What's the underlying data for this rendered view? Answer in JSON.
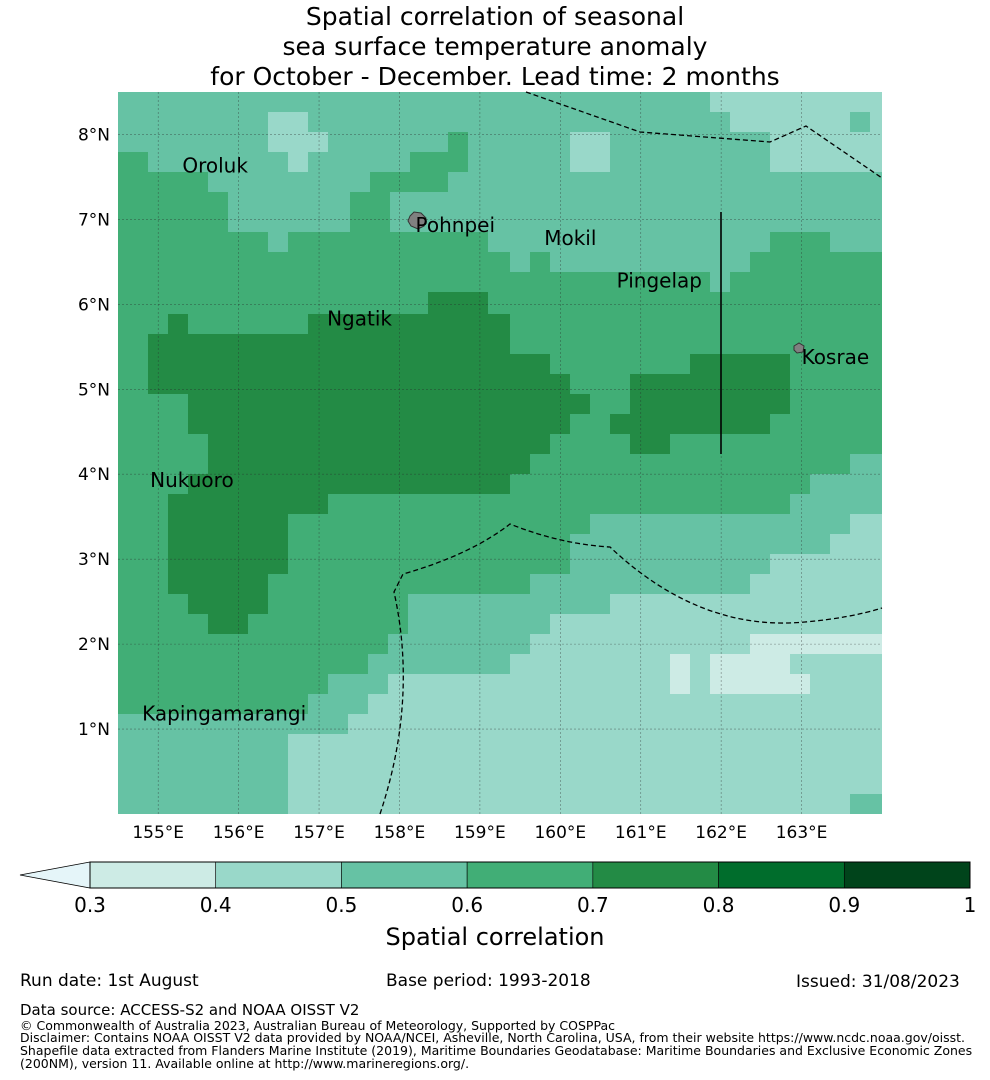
{
  "title_lines": [
    "Spatial correlation of seasonal",
    "sea surface temperature anomaly",
    "for October - December. Lead time: 2 months"
  ],
  "map": {
    "lon_range": [
      154.5,
      164.0
    ],
    "lat_range": [
      0.0,
      8.5
    ],
    "lon_ticks": [
      "155°E",
      "156°E",
      "157°E",
      "158°E",
      "159°E",
      "160°E",
      "161°E",
      "162°E",
      "163°E"
    ],
    "lat_ticks": [
      "8°N",
      "7°N",
      "6°N",
      "5°N",
      "4°N",
      "3°N",
      "2°N",
      "1°N"
    ],
    "places": [
      {
        "name": "Oroluk",
        "lon": 155.3,
        "lat": 7.55
      },
      {
        "name": "Pohnpei",
        "lon": 158.2,
        "lat": 6.85
      },
      {
        "name": "Mokil",
        "lon": 159.8,
        "lat": 6.7
      },
      {
        "name": "Pingelap",
        "lon": 160.7,
        "lat": 6.2
      },
      {
        "name": "Ngatik",
        "lon": 157.1,
        "lat": 5.75
      },
      {
        "name": "Kosrae",
        "lon": 163.0,
        "lat": 5.3
      },
      {
        "name": "Nukuoro",
        "lon": 154.9,
        "lat": 3.85
      },
      {
        "name": "Kapingamarangi",
        "lon": 154.8,
        "lat": 1.1
      }
    ]
  },
  "colors": {
    "bins": [
      "#cdebe5",
      "#99d8c9",
      "#66c2a4",
      "#41ae76",
      "#238b45",
      "#006d2c",
      "#00441b"
    ],
    "under": "#e5f5f9",
    "land": "#808080"
  },
  "colorbar": {
    "ticks": [
      "0.3",
      "0.4",
      "0.5",
      "0.6",
      "0.7",
      "0.8",
      "0.9",
      "1"
    ],
    "label": "Spatial correlation"
  },
  "footer": {
    "run_date": "Run date: 1st August",
    "base_period": "Base period: 1993-2018",
    "issued": "Issued: 31/08/2023",
    "data_source": "Data source: ACCESS-S2 and NOAA OISST V2",
    "copyright": "© Commonwealth of Australia 2023, Australian Bureau of Meteorology, Supported by COSPPac",
    "disclaimer": [
      "Disclaimer: Contains NOAA OISST V2 data provided by NOAA/NCEI, Asheville, North Carolina, USA, from their website https://www.ncdc.noaa.gov/oisst.",
      "Shapefile data extracted from Flanders Marine Institute (2019), Maritime Boundaries Geodatabase: Maritime Boundaries and Exclusive Economic Zones",
      "(200NM), version 11. Available online at http://www.marineregions.org/."
    ]
  }
}
